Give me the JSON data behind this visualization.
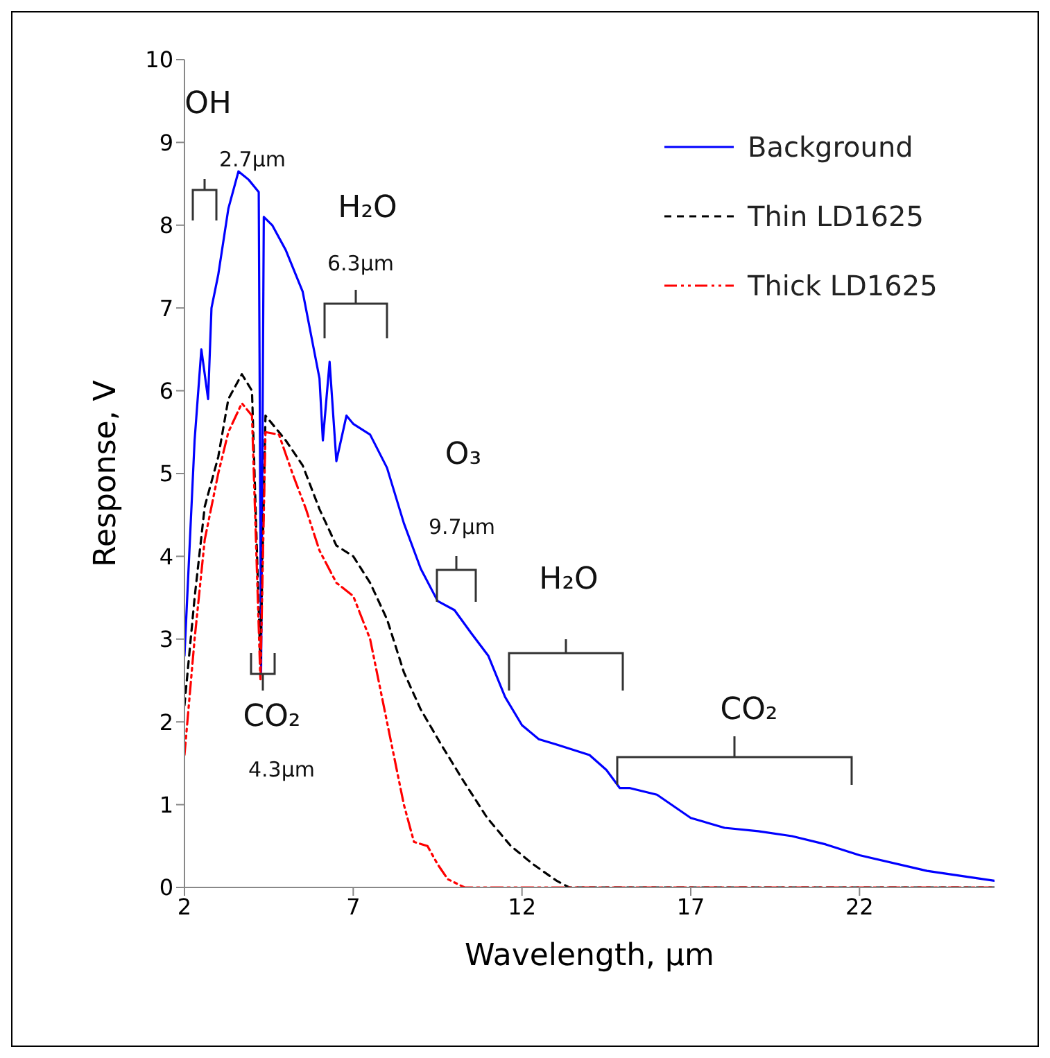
{
  "chart_data": {
    "type": "line",
    "xlabel": "Wavelength, µm",
    "ylabel": "Response, V",
    "xlim": [
      2,
      26
    ],
    "xticks": [
      2,
      7,
      12,
      17,
      22
    ],
    "ylim": [
      0,
      10
    ],
    "yticks": [
      0,
      1,
      2,
      3,
      4,
      5,
      6,
      7,
      8,
      9,
      10
    ],
    "legend": "top right",
    "series": [
      {
        "name": "Background",
        "color": "#0000ff",
        "line_style": "solid",
        "x": [
          2.0,
          2.3,
          2.5,
          2.7,
          2.8,
          3.0,
          3.3,
          3.6,
          3.9,
          4.2,
          4.27,
          4.35,
          4.6,
          5.0,
          5.5,
          6.0,
          6.1,
          6.3,
          6.5,
          6.8,
          7.0,
          7.5,
          8.0,
          8.5,
          9.0,
          9.5,
          10.0,
          10.5,
          11.0,
          11.5,
          12.0,
          12.5,
          13.0,
          14.0,
          14.5,
          14.9,
          15.2,
          16.0,
          17.0,
          18.0,
          19.0,
          20.0,
          21.0,
          22.0,
          24.0,
          26.0
        ],
        "values": [
          2.8,
          5.4,
          6.5,
          5.9,
          7.0,
          7.4,
          8.2,
          8.65,
          8.55,
          8.4,
          2.6,
          8.1,
          8.0,
          7.7,
          7.2,
          6.15,
          5.4,
          6.35,
          5.15,
          5.7,
          5.6,
          5.47,
          5.07,
          4.4,
          3.85,
          3.46,
          3.35,
          3.07,
          2.8,
          2.3,
          1.96,
          1.79,
          1.73,
          1.6,
          1.42,
          1.2,
          1.2,
          1.12,
          0.84,
          0.72,
          0.68,
          0.62,
          0.52,
          0.39,
          0.2,
          0.08
        ]
      },
      {
        "name": "Thin LD1625",
        "color": "#000000",
        "line_style": "dashed",
        "x": [
          2.0,
          2.3,
          2.6,
          3.0,
          3.3,
          3.7,
          4.0,
          4.25,
          4.4,
          5.0,
          5.5,
          6.0,
          6.5,
          7.0,
          7.5,
          8.0,
          8.5,
          9.0,
          9.6,
          10.26,
          10.97,
          11.67,
          12.33,
          13.03,
          13.4,
          26.0
        ],
        "values": [
          2.2,
          3.5,
          4.6,
          5.2,
          5.9,
          6.2,
          6.0,
          2.7,
          5.7,
          5.4,
          5.1,
          4.57,
          4.13,
          4.0,
          3.68,
          3.24,
          2.6,
          2.15,
          1.73,
          1.29,
          0.84,
          0.5,
          0.28,
          0.08,
          0,
          0
        ]
      },
      {
        "name": "Thick LD1625",
        "color": "#ff0000",
        "line_style": "dashdot",
        "x": [
          2.0,
          2.3,
          2.6,
          3.0,
          3.3,
          3.7,
          4.0,
          4.25,
          4.4,
          4.8,
          5.2,
          5.6,
          6.0,
          6.5,
          7.0,
          7.5,
          8.0,
          8.5,
          8.8,
          9.2,
          9.5,
          9.8,
          10.3,
          26.0
        ],
        "values": [
          1.6,
          3.0,
          4.2,
          5.0,
          5.5,
          5.85,
          5.7,
          2.5,
          5.5,
          5.47,
          5.0,
          4.57,
          4.07,
          3.68,
          3.52,
          3.0,
          2.0,
          1.0,
          0.55,
          0.5,
          0.28,
          0.1,
          0,
          0
        ]
      }
    ],
    "annotations": [
      "OH",
      "2.7µm",
      "H₂O",
      "6.3µm",
      "O₃",
      "9.7µm",
      "H₂O",
      "CO₂",
      "4.3µm",
      "CO₂"
    ]
  }
}
